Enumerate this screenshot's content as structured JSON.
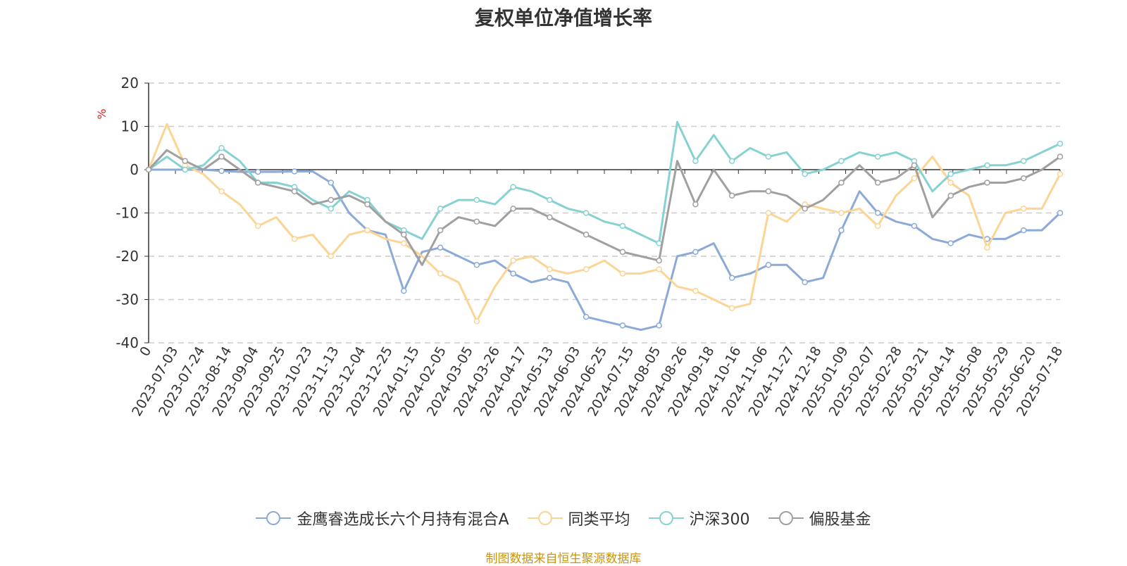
{
  "chart_data": {
    "type": "line",
    "title": "复权单位净值增长率",
    "ylabel": "%",
    "ylim": [
      -40,
      20
    ],
    "y_ticks": [
      "20",
      "10",
      "0",
      "-10",
      "-20",
      "-30",
      "-40"
    ],
    "y_tick_values": [
      20,
      10,
      0,
      -10,
      -20,
      -30,
      -40
    ],
    "x_tick_labels": [
      "0",
      "2023-07-03",
      "2023-07-24",
      "2023-08-14",
      "2023-09-04",
      "2023-09-25",
      "2023-10-23",
      "2023-11-13",
      "2023-12-04",
      "2023-12-25",
      "2024-01-15",
      "2024-02-05",
      "2024-03-05",
      "2024-03-26",
      "2024-04-17",
      "2024-05-13",
      "2024-06-03",
      "2024-06-25",
      "2024-07-15",
      "2024-08-05",
      "2024-08-26",
      "2024-09-18",
      "2024-10-16",
      "2024-11-06",
      "2024-11-27",
      "2024-12-18",
      "2025-01-09",
      "2025-02-07",
      "2025-02-28",
      "2025-03-21",
      "2025-04-14",
      "2025-05-08",
      "2025-05-29",
      "2025-06-20",
      "2025-07-18"
    ],
    "grid": true,
    "legend_position": "bottom-center",
    "series": [
      {
        "name": "金鹰睿选成长六个月持有混合A",
        "color": "#8caad8",
        "values": [
          0,
          0,
          0,
          0,
          -0.3,
          -0.5,
          -0.5,
          -0.5,
          -0.4,
          -0.4,
          -3,
          -10,
          -14,
          -15,
          -28,
          -19,
          -18,
          -20,
          -22,
          -21,
          -24,
          -26,
          -25,
          -26,
          -34,
          -35,
          -36,
          -37,
          -36,
          -20,
          -19,
          -17,
          -25,
          -24,
          -22,
          -22,
          -26,
          -25,
          -14,
          -5,
          -10,
          -12,
          -13,
          -16,
          -17,
          -15,
          -16,
          -16,
          -14,
          -14,
          -10
        ]
      },
      {
        "name": "同类平均",
        "color": "#fcd494",
        "values": [
          0,
          10.5,
          1,
          -1,
          -5,
          -8,
          -13,
          -11,
          -16,
          -15,
          -20,
          -15,
          -14,
          -16,
          -17,
          -20,
          -24,
          -26,
          -35,
          -27,
          -21,
          -20,
          -23,
          -24,
          -23,
          -21,
          -24,
          -24,
          -23,
          -27,
          -28,
          -30,
          -32,
          -31,
          -10,
          -12,
          -8,
          -9,
          -10,
          -9,
          -13,
          -6,
          -2,
          3,
          -3,
          -6,
          -18,
          -10,
          -9,
          -9,
          -1
        ]
      },
      {
        "name": "沪深300",
        "color": "#86d2d2",
        "values": [
          0,
          3,
          0,
          1,
          5,
          2,
          -3,
          -3,
          -4,
          -7,
          -9,
          -5,
          -7,
          -12,
          -14,
          -16,
          -9,
          -7,
          -7,
          -8,
          -4,
          -5,
          -7,
          -9,
          -10,
          -12,
          -13,
          -15,
          -17,
          11,
          2,
          8,
          2,
          5,
          3,
          4,
          -1,
          0,
          2,
          4,
          3,
          4,
          2,
          -5,
          -1,
          0,
          1,
          1,
          2,
          4,
          6
        ]
      },
      {
        "name": "偏股基金",
        "color": "#a0a0a0",
        "values": [
          0,
          4.5,
          2,
          0,
          3,
          0,
          -3,
          -4,
          -5,
          -8,
          -7,
          -6,
          -8,
          -12,
          -15,
          -22,
          -14,
          -11,
          -12,
          -13,
          -9,
          -9,
          -11,
          -13,
          -15,
          -17,
          -19,
          -20,
          -21,
          2,
          -8,
          0,
          -6,
          -5,
          -5,
          -6,
          -9,
          -7,
          -3,
          1,
          -3,
          -2,
          1,
          -11,
          -6,
          -4,
          -3,
          -3,
          -2,
          0,
          3
        ]
      }
    ]
  },
  "legend": {
    "items": [
      "金鹰睿选成长六个月持有混合A",
      "同类平均",
      "沪深300",
      "偏股基金"
    ]
  },
  "source": "制图数据来自恒生聚源数据库"
}
